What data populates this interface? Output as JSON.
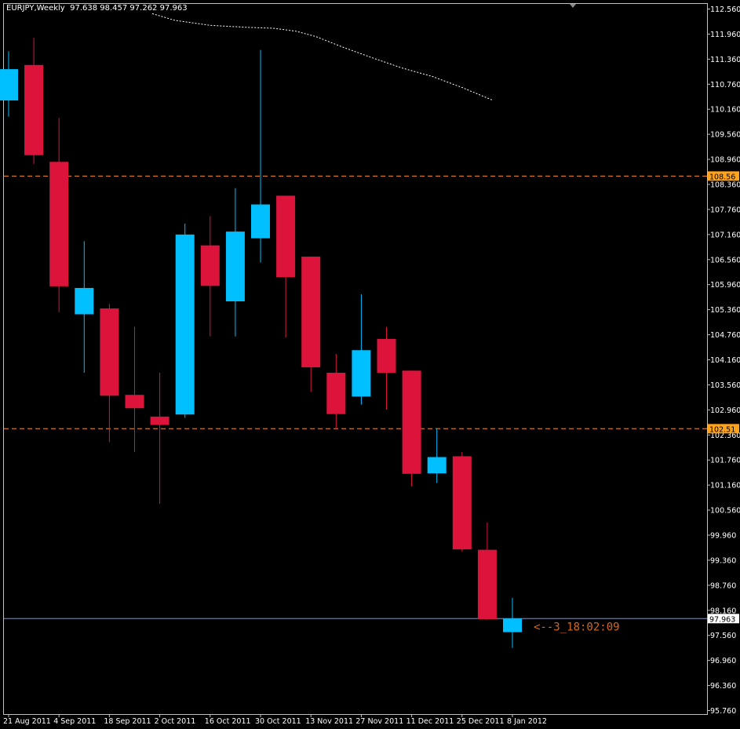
{
  "header": {
    "symbol_timeframe": "EURJPY,Weekly",
    "ohlc": "97.638 98.457 97.262 97.963"
  },
  "colors": {
    "background": "#000000",
    "bull": "#00bfff",
    "bear": "#dc143c",
    "axis": "#c0c0c0",
    "level_line": "#ff8c2a",
    "level_label_bg": "#ffa31a",
    "price_line": "#7f95b8",
    "ma_line": "#ffffff",
    "countdown": "#d2691e"
  },
  "chart_data": {
    "type": "candlestick",
    "title": "EURJPY,Weekly",
    "ylim": [
      95.76,
      112.56
    ],
    "y_ticks": [
      "112.560",
      "111.960",
      "111.360",
      "110.760",
      "110.160",
      "109.560",
      "108.960",
      "108.360",
      "107.760",
      "107.160",
      "106.560",
      "105.960",
      "105.360",
      "104.760",
      "104.160",
      "103.560",
      "102.960",
      "102.360",
      "101.760",
      "101.160",
      "100.560",
      "99.960",
      "99.360",
      "98.760",
      "98.160",
      "97.560",
      "96.960",
      "96.360",
      "95.760"
    ],
    "x_labels": [
      "21 Aug 2011",
      "4 Sep 2011",
      "18 Sep 2011",
      "2 Oct 2011",
      "16 Oct 2011",
      "30 Oct 2011",
      "13 Nov 2011",
      "27 Nov 2011",
      "11 Dec 2011",
      "25 Dec 2011",
      "8 Jan 2012"
    ],
    "candles": [
      {
        "o": 110.37,
        "h": 111.55,
        "l": 109.98,
        "c": 111.12
      },
      {
        "o": 111.22,
        "h": 111.87,
        "l": 108.85,
        "c": 109.06
      },
      {
        "o": 108.9,
        "h": 109.95,
        "l": 105.3,
        "c": 105.92
      },
      {
        "o": 105.25,
        "h": 107.0,
        "l": 103.85,
        "c": 105.88
      },
      {
        "o": 105.39,
        "h": 105.5,
        "l": 102.19,
        "c": 103.3
      },
      {
        "o": 103.32,
        "h": 104.95,
        "l": 101.95,
        "c": 103.0
      },
      {
        "o": 102.8,
        "h": 103.85,
        "l": 100.71,
        "c": 102.6
      },
      {
        "o": 102.85,
        "h": 107.42,
        "l": 102.77,
        "c": 107.16
      },
      {
        "o": 106.9,
        "h": 107.6,
        "l": 104.72,
        "c": 105.93
      },
      {
        "o": 105.56,
        "h": 108.27,
        "l": 104.72,
        "c": 107.23
      },
      {
        "o": 107.07,
        "h": 111.58,
        "l": 106.49,
        "c": 107.88
      },
      {
        "o": 108.09,
        "h": 108.09,
        "l": 104.69,
        "c": 106.14
      },
      {
        "o": 106.63,
        "h": 106.63,
        "l": 103.39,
        "c": 103.98
      },
      {
        "o": 103.85,
        "h": 104.3,
        "l": 102.51,
        "c": 102.86
      },
      {
        "o": 103.28,
        "h": 105.73,
        "l": 103.09,
        "c": 104.39
      },
      {
        "o": 104.66,
        "h": 104.95,
        "l": 102.97,
        "c": 103.85
      },
      {
        "o": 103.9,
        "h": 103.9,
        "l": 101.13,
        "c": 101.43
      },
      {
        "o": 101.44,
        "h": 102.51,
        "l": 101.21,
        "c": 101.83
      },
      {
        "o": 101.85,
        "h": 101.95,
        "l": 99.57,
        "c": 99.62
      },
      {
        "o": 99.61,
        "h": 100.26,
        "l": 97.93,
        "c": 97.95
      },
      {
        "o": 97.638,
        "h": 98.457,
        "l": 97.262,
        "c": 97.963
      }
    ],
    "horizontal_levels": [
      {
        "label": "108.56",
        "value": 108.56
      },
      {
        "label": "102.51",
        "value": 102.51
      }
    ],
    "current_price": {
      "label": "97.963",
      "value": 97.963
    },
    "moving_average": [
      {
        "i": 5.7,
        "v": 112.45
      },
      {
        "i": 6.6,
        "v": 112.29
      },
      {
        "i": 8.0,
        "v": 112.17
      },
      {
        "i": 9.5,
        "v": 112.12
      },
      {
        "i": 10.5,
        "v": 112.1
      },
      {
        "i": 11.4,
        "v": 112.03
      },
      {
        "i": 12.2,
        "v": 111.9
      },
      {
        "i": 13.3,
        "v": 111.64
      },
      {
        "i": 14.4,
        "v": 111.4
      },
      {
        "i": 15.6,
        "v": 111.15
      },
      {
        "i": 16.8,
        "v": 110.95
      },
      {
        "i": 18.0,
        "v": 110.68
      },
      {
        "i": 19.2,
        "v": 110.38
      }
    ],
    "countdown_label": "<--3_18:02:09"
  }
}
